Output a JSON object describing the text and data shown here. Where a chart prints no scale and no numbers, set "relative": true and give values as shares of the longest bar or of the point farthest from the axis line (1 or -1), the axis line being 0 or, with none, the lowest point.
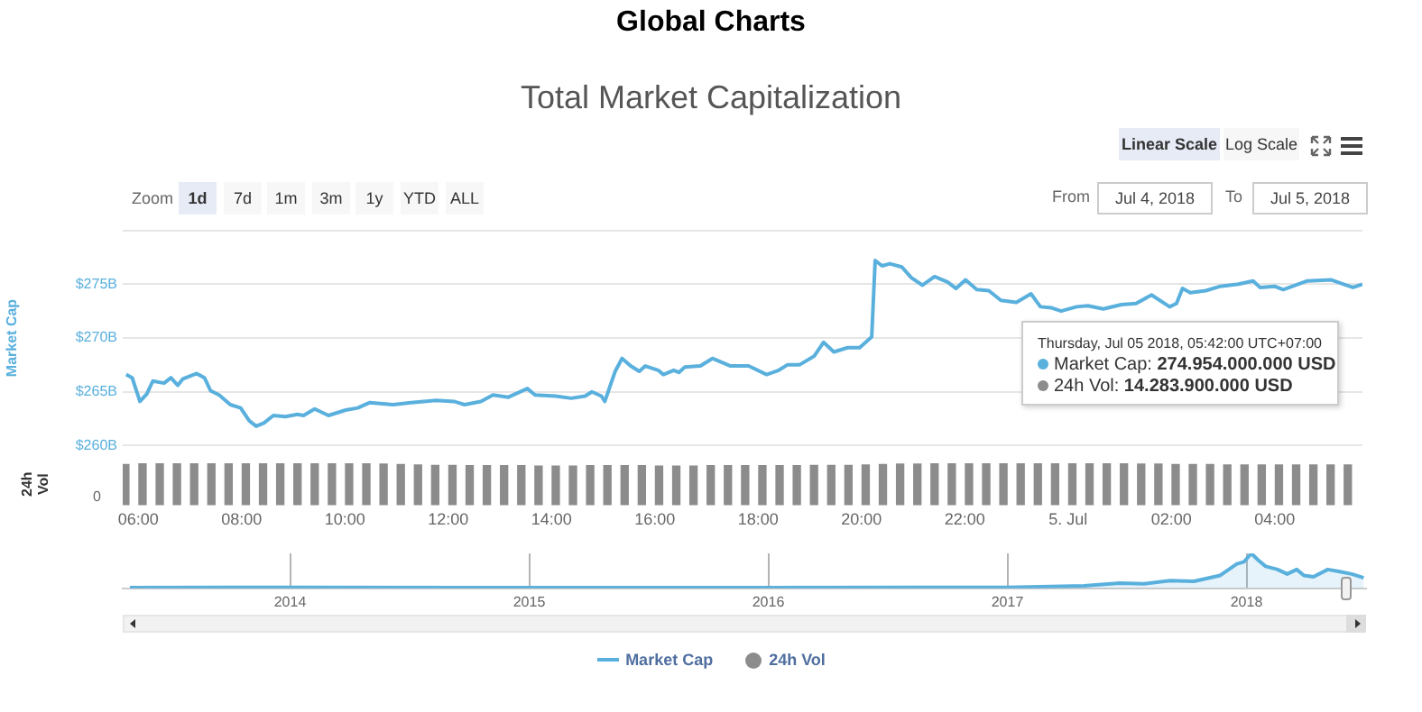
{
  "chart_data": [
    {
      "type": "line",
      "title": "Global Charts",
      "subtitle": "Total Market Capitalization",
      "ylabel": "Market Cap",
      "series": [
        {
          "name": "Market Cap",
          "color": "#5ab0dd",
          "x": [
            "2018-07-04T05:46",
            "2018-07-04T05:53",
            "2018-07-04T06:02",
            "2018-07-04T06:10",
            "2018-07-04T06:17",
            "2018-07-04T06:30",
            "2018-07-04T06:38",
            "2018-07-04T06:46",
            "2018-07-04T06:52",
            "2018-07-04T07:08",
            "2018-07-04T07:17",
            "2018-07-04T07:24",
            "2018-07-04T07:34",
            "2018-07-04T07:47",
            "2018-07-04T07:59",
            "2018-07-04T08:09",
            "2018-07-04T08:17",
            "2018-07-04T08:26",
            "2018-07-04T08:37",
            "2018-07-04T08:51",
            "2018-07-04T09:05",
            "2018-07-04T09:12",
            "2018-07-04T09:25",
            "2018-07-04T09:41",
            "2018-07-04T10:01",
            "2018-07-04T10:15",
            "2018-07-04T10:29",
            "2018-07-04T10:56",
            "2018-07-04T11:17",
            "2018-07-04T11:46",
            "2018-07-04T12:07",
            "2018-07-04T12:19",
            "2018-07-04T12:38",
            "2018-07-04T12:52",
            "2018-07-04T13:10",
            "2018-07-04T13:32",
            "2018-07-04T13:41",
            "2018-07-04T14:05",
            "2018-07-04T14:23",
            "2018-07-04T14:39",
            "2018-07-04T14:47",
            "2018-07-04T14:58",
            "2018-07-04T15:02",
            "2018-07-04T15:14",
            "2018-07-04T15:22",
            "2018-07-04T15:32",
            "2018-07-04T15:42",
            "2018-07-04T15:49",
            "2018-07-04T16:04",
            "2018-07-04T16:10",
            "2018-07-04T16:22",
            "2018-07-04T16:28",
            "2018-07-04T16:35",
            "2018-07-04T16:53",
            "2018-07-04T17:07",
            "2018-07-04T17:28",
            "2018-07-04T17:49",
            "2018-07-04T18:10",
            "2018-07-04T18:24",
            "2018-07-04T18:34",
            "2018-07-04T18:48",
            "2018-07-04T19:05",
            "2018-07-04T19:16",
            "2018-07-04T19:28",
            "2018-07-04T19:44",
            "2018-07-04T19:58",
            "2018-07-04T20:12",
            "2018-07-04T20:16",
            "2018-07-04T20:24",
            "2018-07-04T20:33",
            "2018-07-04T20:47",
            "2018-07-04T20:58",
            "2018-07-04T21:11",
            "2018-07-04T21:25",
            "2018-07-04T21:40",
            "2018-07-04T21:50",
            "2018-07-04T22:01",
            "2018-07-04T22:14",
            "2018-07-04T22:28",
            "2018-07-04T22:42",
            "2018-07-04T23:00",
            "2018-07-04T23:17",
            "2018-07-04T23:28",
            "2018-07-04T23:41",
            "2018-07-04T23:52",
            "2018-07-05T00:10",
            "2018-07-05T00:23",
            "2018-07-05T00:41",
            "2018-07-05T01:02",
            "2018-07-05T01:19",
            "2018-07-05T01:37",
            "2018-07-05T01:58",
            "2018-07-05T02:06",
            "2018-07-05T02:13",
            "2018-07-05T02:22",
            "2018-07-05T02:40",
            "2018-07-05T02:57",
            "2018-07-05T03:18",
            "2018-07-05T03:35",
            "2018-07-05T03:43",
            "2018-07-05T04:00",
            "2018-07-05T04:10",
            "2018-07-05T04:38",
            "2018-07-05T05:06",
            "2018-07-05T05:20",
            "2018-07-05T05:31",
            "2018-07-05T05:42"
          ],
          "values": [
            266.6,
            266.3,
            264.1,
            264.8,
            266.0,
            265.8,
            266.3,
            265.6,
            266.2,
            266.7,
            266.3,
            265.1,
            264.7,
            263.8,
            263.5,
            262.3,
            261.8,
            262.1,
            262.8,
            262.7,
            262.9,
            262.8,
            263.4,
            262.8,
            263.3,
            263.5,
            264.0,
            263.8,
            264.0,
            264.2,
            264.1,
            263.8,
            264.1,
            264.7,
            264.5,
            265.3,
            264.7,
            264.6,
            264.4,
            264.6,
            265.0,
            264.6,
            264.1,
            266.9,
            268.1,
            267.4,
            266.9,
            267.4,
            267.0,
            266.6,
            267.0,
            266.8,
            267.3,
            267.4,
            268.1,
            267.4,
            267.4,
            266.6,
            267.0,
            267.5,
            267.5,
            268.3,
            269.6,
            268.7,
            269.1,
            269.1,
            270.1,
            277.2,
            276.7,
            276.9,
            276.6,
            275.6,
            274.9,
            275.7,
            275.2,
            274.6,
            275.4,
            274.5,
            274.4,
            273.5,
            273.3,
            274.1,
            272.9,
            272.8,
            272.5,
            272.9,
            273.0,
            272.7,
            273.1,
            273.2,
            274.0,
            272.9,
            273.2,
            274.6,
            274.2,
            274.4,
            274.8,
            275.0,
            275.3,
            274.7,
            274.8,
            274.5,
            275.3,
            275.4,
            275.0,
            274.7,
            275.0
          ]
        }
      ],
      "xlim": [
        "2018-07-04T05:42",
        "2018-07-05T05:42"
      ],
      "ylim": [
        260,
        280
      ],
      "yticks": [
        {
          "value": 260,
          "label": "$260B"
        },
        {
          "value": 265,
          "label": "$265B"
        },
        {
          "value": 270,
          "label": "$270B"
        },
        {
          "value": 275,
          "label": "$275B"
        },
        {
          "value": 280,
          "label": null
        }
      ],
      "grid": "y",
      "tick_labels": "y",
      "legend": "bottom",
      "marker": "none",
      "line_style": "solid",
      "annotations": [
        "Zoom",
        "1d",
        "7d",
        "1m",
        "3m",
        "1y",
        "YTD",
        "ALL",
        "Linear Scale",
        "Log Scale",
        "From",
        "Jul 4, 2018",
        "To",
        "Jul 5, 2018",
        "Thursday, Jul 05 2018, 05:42:00 UTC+07:00",
        "Market Cap: 274.954.000.000 USD",
        "24h Vol: 14.283.900.000 USD"
      ]
    },
    {
      "type": "bar",
      "ylabel": "24h Vol",
      "relative": true,
      "legend": "bottom",
      "tick_labels": "x",
      "series": [
        {
          "name": "24h Vol",
          "color": "#8c8c8c",
          "x": [
            "2018-07-04T05:45",
            "2018-07-04T06:05",
            "2018-07-04T06:25",
            "2018-07-04T06:45",
            "2018-07-04T07:05",
            "2018-07-04T07:25",
            "2018-07-04T07:45",
            "2018-07-04T08:05",
            "2018-07-04T08:25",
            "2018-07-04T08:45",
            "2018-07-04T09:05",
            "2018-07-04T09:25",
            "2018-07-04T09:45",
            "2018-07-04T10:05",
            "2018-07-04T10:25",
            "2018-07-04T10:45",
            "2018-07-04T11:05",
            "2018-07-04T11:25",
            "2018-07-04T11:45",
            "2018-07-04T12:05",
            "2018-07-04T12:25",
            "2018-07-04T12:45",
            "2018-07-04T13:05",
            "2018-07-04T13:25",
            "2018-07-04T13:45",
            "2018-07-04T14:05",
            "2018-07-04T14:25",
            "2018-07-04T14:45",
            "2018-07-04T15:05",
            "2018-07-04T15:25",
            "2018-07-04T15:45",
            "2018-07-04T16:05",
            "2018-07-04T16:25",
            "2018-07-04T16:45",
            "2018-07-04T17:05",
            "2018-07-04T17:25",
            "2018-07-04T17:45",
            "2018-07-04T18:05",
            "2018-07-04T18:25",
            "2018-07-04T18:45",
            "2018-07-04T19:05",
            "2018-07-04T19:25",
            "2018-07-04T19:45",
            "2018-07-04T20:05",
            "2018-07-04T20:25",
            "2018-07-04T20:45",
            "2018-07-04T21:05",
            "2018-07-04T21:25",
            "2018-07-04T21:45",
            "2018-07-04T22:05",
            "2018-07-04T22:25",
            "2018-07-04T22:45",
            "2018-07-04T23:05",
            "2018-07-04T23:25",
            "2018-07-04T23:45",
            "2018-07-05T00:05",
            "2018-07-05T00:25",
            "2018-07-05T00:45",
            "2018-07-05T01:05",
            "2018-07-05T01:25",
            "2018-07-05T01:45",
            "2018-07-05T02:05",
            "2018-07-05T02:25",
            "2018-07-05T02:45",
            "2018-07-05T03:05",
            "2018-07-05T03:25",
            "2018-07-05T03:45",
            "2018-07-05T04:05",
            "2018-07-05T04:25",
            "2018-07-05T04:45",
            "2018-07-05T05:05",
            "2018-07-05T05:25"
          ],
          "values": [
            0.97,
            0.99,
            0.99,
            0.99,
            1,
            1,
            1,
            1,
            1,
            1,
            1,
            1,
            1,
            1,
            0.99,
            0.98,
            0.97,
            0.96,
            0.95,
            0.95,
            0.94,
            0.94,
            0.94,
            0.94,
            0.93,
            0.93,
            0.93,
            0.94,
            0.94,
            0.94,
            0.94,
            0.93,
            0.93,
            0.93,
            0.94,
            0.94,
            0.94,
            0.94,
            0.94,
            0.94,
            0.95,
            0.95,
            0.95,
            0.96,
            0.97,
            0.98,
            0.98,
            0.99,
            1,
            1,
            1,
            1,
            1,
            1,
            1,
            1,
            1,
            0.99,
            0.99,
            0.98,
            0.98,
            0.97,
            0.97,
            0.97,
            0.96,
            0.96,
            0.96,
            0.96,
            0.96,
            0.96,
            0.96,
            0.96
          ]
        }
      ],
      "xlim": [
        "2018-07-04T05:42",
        "2018-07-05T05:42"
      ],
      "xticks": [
        {
          "value": "2018-07-04T06:00",
          "label": "06:00"
        },
        {
          "value": "2018-07-04T08:00",
          "label": "08:00"
        },
        {
          "value": "2018-07-04T10:00",
          "label": "10:00"
        },
        {
          "value": "2018-07-04T12:00",
          "label": "12:00"
        },
        {
          "value": "2018-07-04T14:00",
          "label": "14:00"
        },
        {
          "value": "2018-07-04T16:00",
          "label": "16:00"
        },
        {
          "value": "2018-07-04T18:00",
          "label": "18:00"
        },
        {
          "value": "2018-07-04T20:00",
          "label": "20:00"
        },
        {
          "value": "2018-07-04T22:00",
          "label": "22:00"
        },
        {
          "value": "2018-07-05T00:00",
          "label": "5. Jul"
        },
        {
          "value": "2018-07-05T02:00",
          "label": "02:00"
        },
        {
          "value": "2018-07-05T04:00",
          "label": "04:00"
        }
      ],
      "annotations": [
        "0"
      ]
    },
    {
      "type": "area",
      "relative": true,
      "grid": "x",
      "tick_labels": "x",
      "marker": "none",
      "series": [
        {
          "color": "#5ab0dd",
          "x": [
            2013.33,
            2014.01,
            2015.06,
            2016.0,
            2017.0,
            2017.32,
            2017.47,
            2017.57,
            2017.68,
            2017.78,
            2017.89,
            2017.96,
            2017.99,
            2018.02,
            2018.05,
            2018.08,
            2018.13,
            2018.17,
            2018.21,
            2018.24,
            2018.28,
            2018.34,
            2018.39,
            2018.44,
            2018.49
          ],
          "values": [
            0.02,
            0.03,
            0.02,
            0.02,
            0.03,
            0.07,
            0.15,
            0.13,
            0.22,
            0.2,
            0.37,
            0.7,
            0.76,
            1,
            0.8,
            0.63,
            0.54,
            0.41,
            0.54,
            0.37,
            0.33,
            0.54,
            0.48,
            0.41,
            0.3
          ]
        }
      ],
      "xlim": [
        2013.3,
        2018.5
      ],
      "xticks": [
        2014,
        2015,
        2016,
        2017,
        2018
      ]
    }
  ]
}
